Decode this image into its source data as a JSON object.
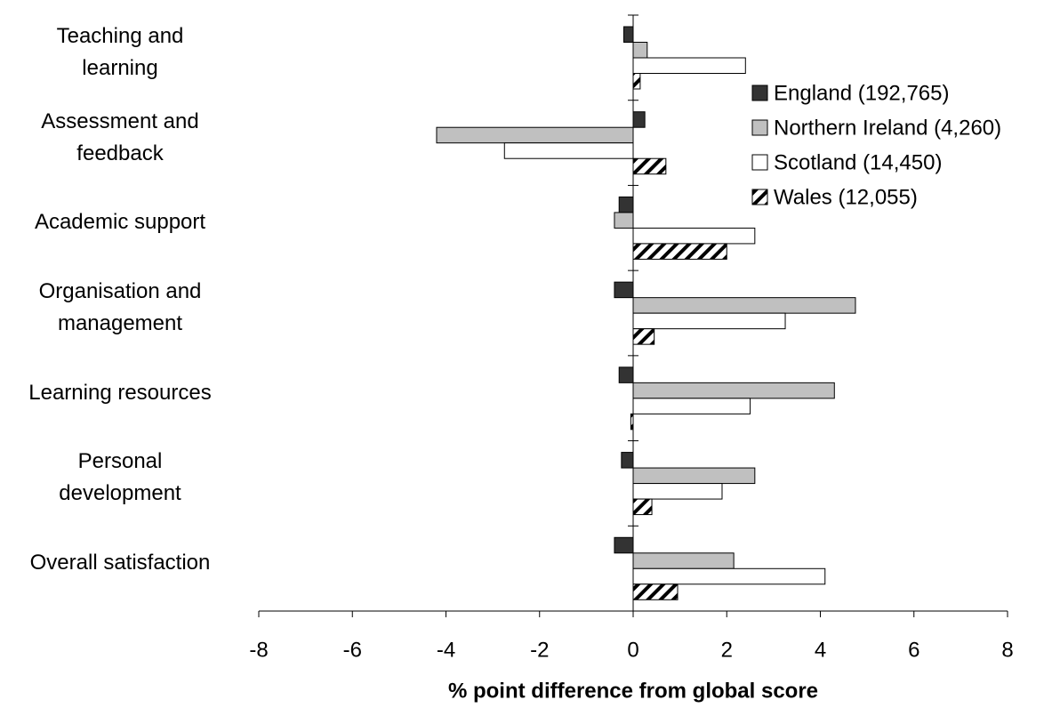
{
  "chart_data": {
    "type": "hbar",
    "x_label": "% point difference from global score",
    "categories": [
      "Teaching and\nlearning",
      "Assessment and\nfeedback",
      "Academic support",
      "Organisation and\nmanagement",
      "Learning resources",
      "Personal\ndevelopment",
      "Overall satisfaction"
    ],
    "series": [
      {
        "name": "England (192,765)",
        "color": "#333333",
        "values": [
          -0.2,
          0.25,
          -0.3,
          -0.4,
          -0.3,
          -0.25,
          -0.4
        ]
      },
      {
        "name": "Northern Ireland (4,260)",
        "color": "#c0c0c0",
        "values": [
          0.3,
          -4.2,
          -0.4,
          4.75,
          4.3,
          2.6,
          2.15
        ]
      },
      {
        "name": "Scotland (14,450)",
        "color": "#ffffff",
        "values": [
          2.4,
          -2.75,
          2.6,
          3.25,
          2.5,
          1.9,
          4.1
        ]
      },
      {
        "name": "Wales (12,055)",
        "color": "#ffffff",
        "pattern": "diagonal",
        "values": [
          0.15,
          0.7,
          2.0,
          0.45,
          -0.05,
          0.4,
          0.95
        ]
      }
    ],
    "xlim": [
      -8,
      8
    ],
    "xticks": [
      -8,
      -6,
      -4,
      -2,
      0,
      2,
      4,
      6,
      8
    ]
  }
}
